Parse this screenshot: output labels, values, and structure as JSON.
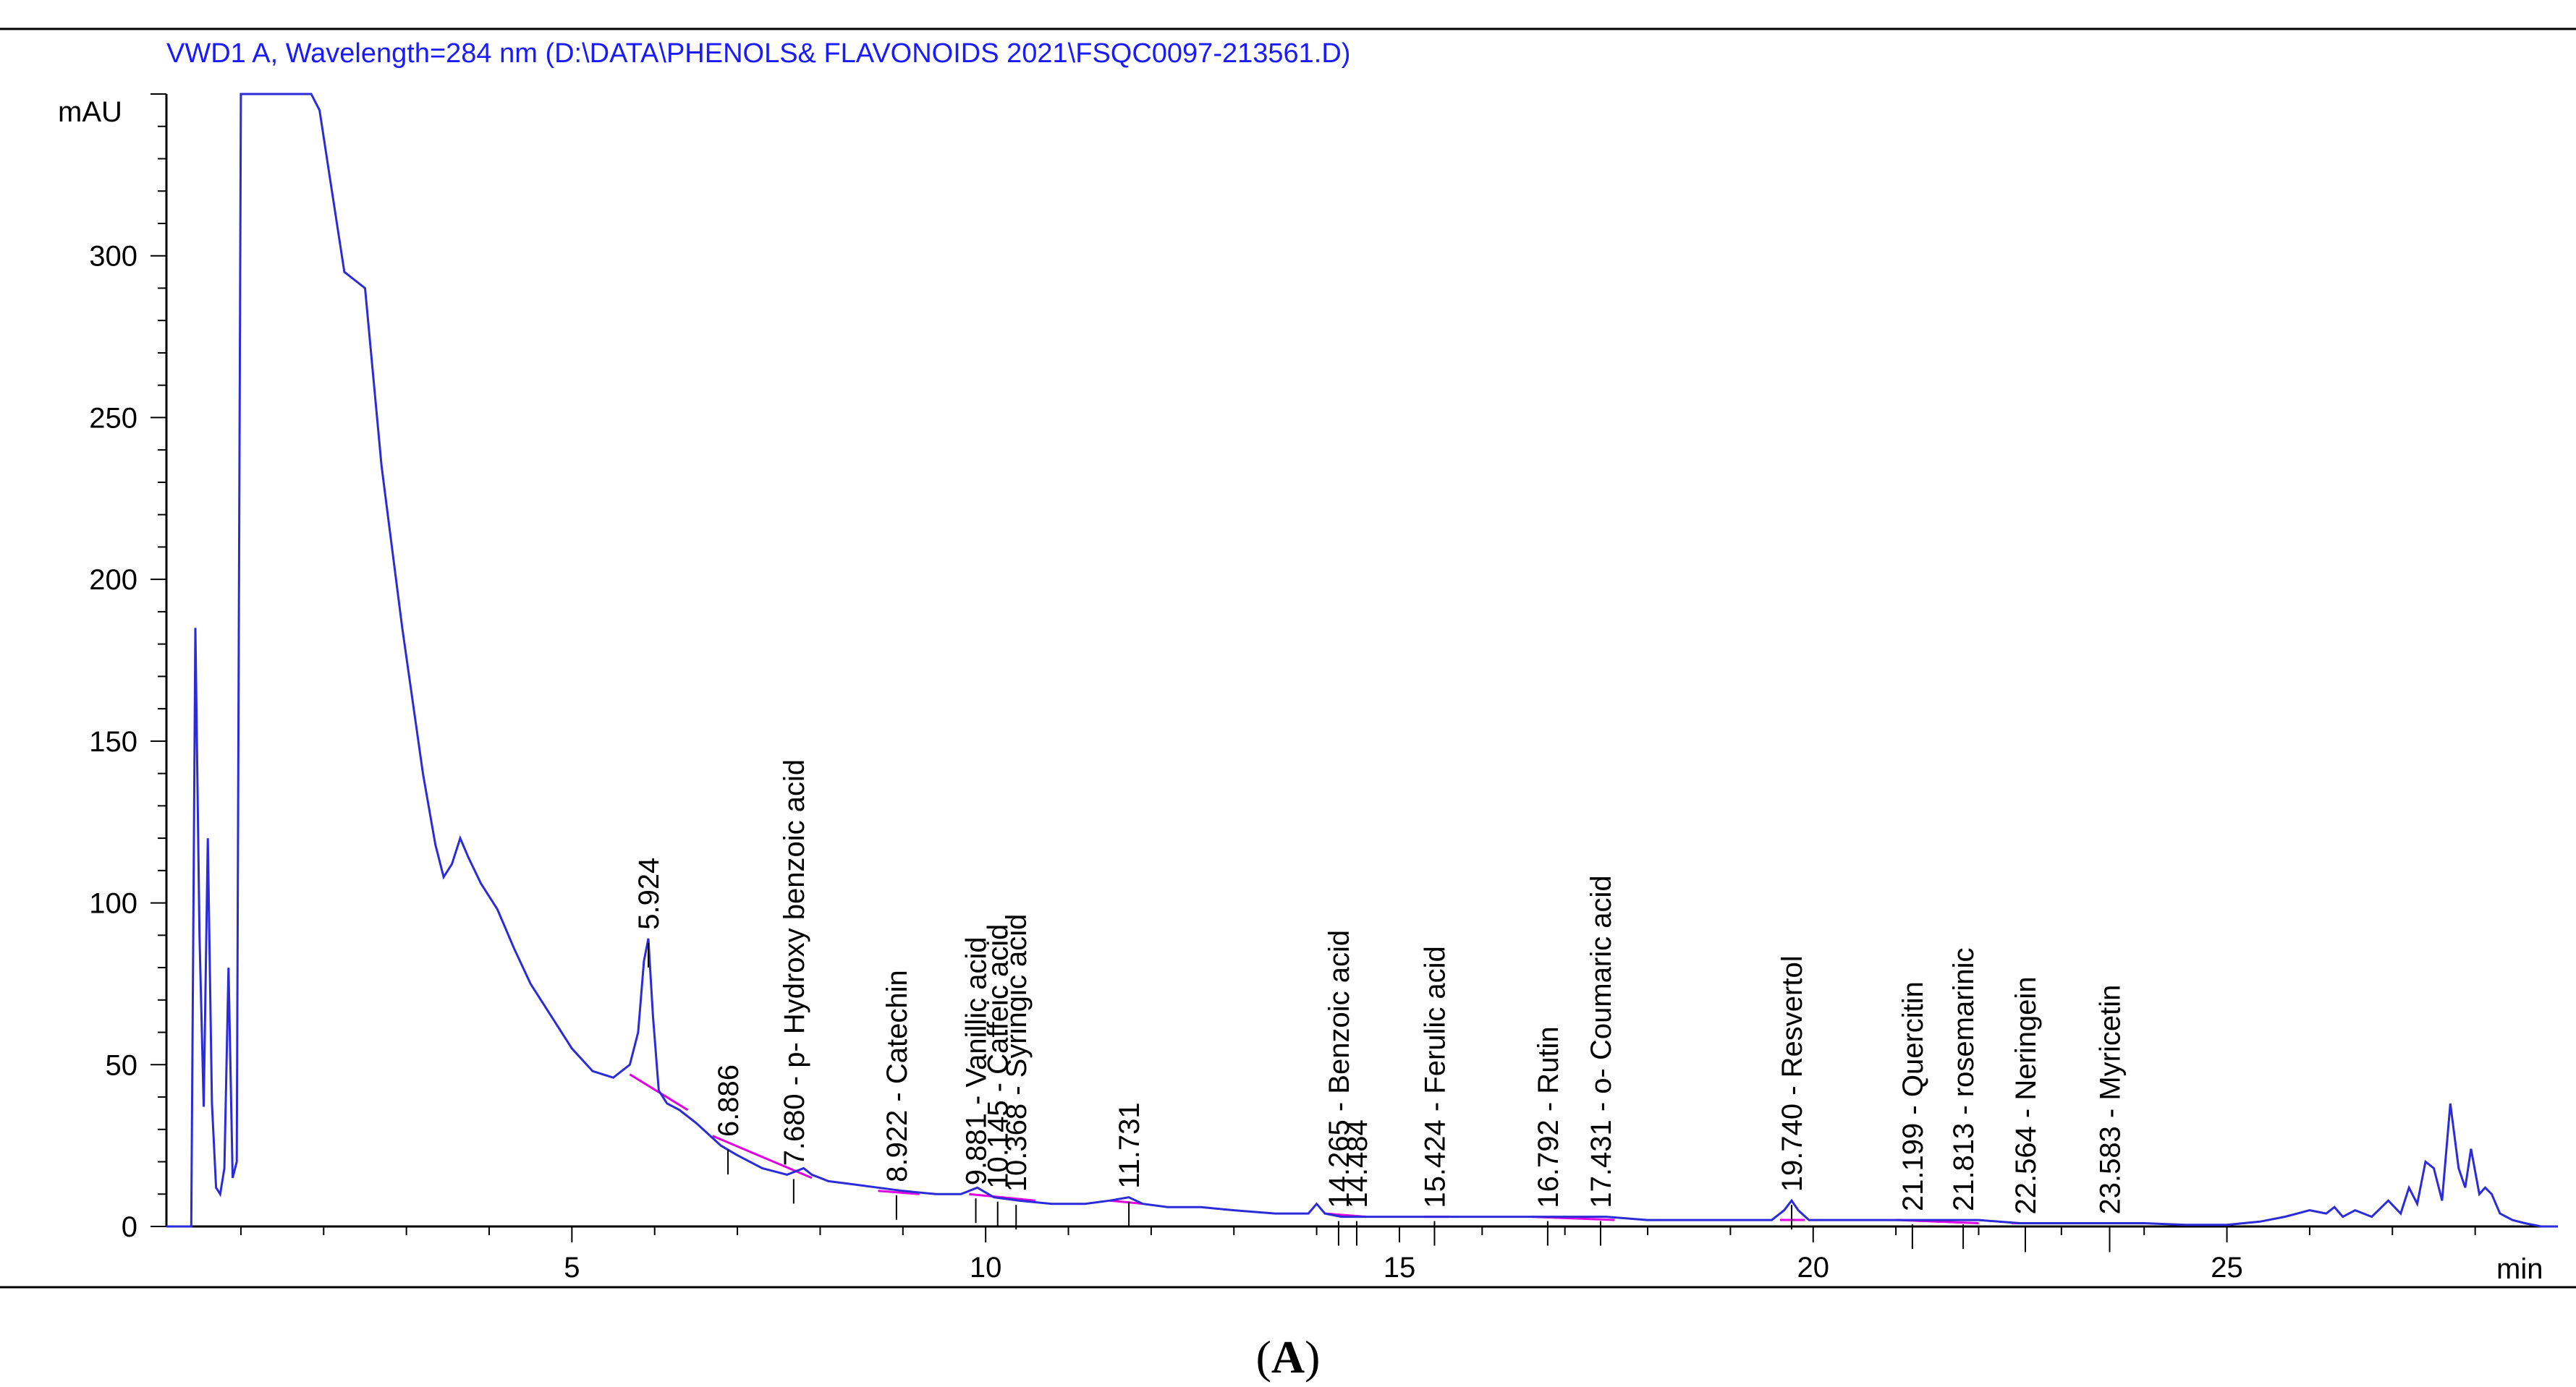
{
  "chart_data": {
    "type": "line",
    "title": "VWD1 A, Wavelength=284 nm (D:\\DATA\\PHENOLS& FLAVONOIDS 2021\\FSQC0097-213561.D)",
    "ylabel": "mAU",
    "xlabel": "min",
    "panel_label": "A",
    "xlim": [
      0.1,
      29.0
    ],
    "ylim": [
      0,
      350
    ],
    "x_ticks": [
      "5",
      "10",
      "15",
      "20",
      "25"
    ],
    "y_ticks": [
      "0",
      "50",
      "100",
      "150",
      "200",
      "250",
      "300"
    ],
    "colors": {
      "signal": "#2b2bd9",
      "baseline": "#e000e0",
      "header": "#1a1aff",
      "axis": "#000000"
    },
    "series": [
      {
        "x": [
          0.1,
          0.25,
          0.35,
          0.4,
          0.45,
          0.5,
          0.55,
          0.6,
          0.65,
          0.7,
          0.75,
          0.8,
          0.85,
          0.9,
          0.95,
          1.0,
          1.05,
          1.1,
          1.15,
          1.2,
          1.25,
          1.3,
          1.35,
          1.4,
          1.5,
          1.6,
          1.7,
          1.85,
          1.95,
          2.1,
          2.25,
          2.5,
          2.7,
          2.95,
          3.2,
          3.35,
          3.45,
          3.55,
          3.65,
          3.75,
          3.9,
          4.1,
          4.3,
          4.5,
          4.75,
          5.0,
          5.25,
          5.5,
          5.7,
          5.8,
          5.87,
          5.924,
          5.98,
          6.05,
          6.15,
          6.3,
          6.5,
          6.8,
          7.0,
          7.3,
          7.6,
          7.8,
          7.9,
          8.1,
          8.4,
          8.7,
          9.0,
          9.4,
          9.7,
          9.9,
          10.1,
          10.4,
          10.8,
          11.2,
          11.5,
          11.73,
          11.9,
          12.2,
          12.6,
          13.0,
          13.5,
          13.9,
          14.0,
          14.1,
          14.3,
          14.5,
          15.0,
          15.5,
          16.0,
          16.5,
          17.0,
          17.5,
          18.0,
          18.5,
          19.0,
          19.5,
          19.65,
          19.74,
          19.82,
          19.95,
          20.5,
          21.0,
          21.5,
          22.0,
          22.5,
          23.0,
          23.5,
          24.0,
          24.5,
          25.0,
          25.4,
          25.7,
          26.0,
          26.2,
          26.3,
          26.4,
          26.55,
          26.65,
          26.75,
          26.95,
          27.1,
          27.2,
          27.3,
          27.4,
          27.5,
          27.6,
          27.7,
          27.8,
          27.88,
          27.95,
          28.05,
          28.12,
          28.2,
          28.3,
          28.45,
          28.6,
          28.8,
          29.0
        ],
        "values": [
          0,
          0,
          0,
          0,
          185,
          90,
          37,
          120,
          38,
          12,
          10,
          18,
          80,
          15,
          20,
          350,
          350,
          350,
          350,
          350,
          350,
          350,
          350,
          350,
          350,
          350,
          350,
          350,
          345,
          320,
          295,
          290,
          235,
          185,
          140,
          118,
          108,
          112,
          120,
          114,
          106,
          98,
          86,
          75,
          65,
          55,
          48,
          46,
          50,
          60,
          82,
          89,
          65,
          42,
          38,
          36,
          32,
          25,
          22,
          18,
          16,
          18,
          16,
          14,
          13,
          12,
          11,
          10,
          10,
          12,
          9,
          8,
          7,
          7,
          8,
          9,
          7,
          6,
          6,
          5,
          4,
          4,
          7,
          4,
          3,
          3,
          3,
          3,
          3,
          3,
          3,
          3,
          2,
          2,
          2,
          2,
          5,
          8,
          5,
          2,
          2,
          2,
          2,
          2,
          1,
          1,
          1,
          1,
          0.5,
          0.5,
          1.5,
          3,
          5,
          4,
          6,
          3,
          5,
          4,
          3,
          8,
          4,
          12,
          7,
          20,
          18,
          8,
          38,
          18,
          12,
          24,
          10,
          12,
          10,
          4,
          2,
          1,
          0,
          0
        ]
      }
    ],
    "peaks": [
      {
        "rt": 5.924,
        "label": "5.924",
        "height": 89
      },
      {
        "rt": 6.886,
        "label": "6.886",
        "height": 25
      },
      {
        "rt": 7.68,
        "label": "7.680 -  p- Hydroxy benzoic acid",
        "height": 16
      },
      {
        "rt": 8.922,
        "label": "8.922 -  Catechin",
        "height": 11
      },
      {
        "rt": 9.881,
        "label": "9.881 -  Vanillic acid",
        "height": 10
      },
      {
        "rt": 10.145,
        "label": "10.145 -  Caffeic acid",
        "height": 9
      },
      {
        "rt": 10.368,
        "label": "10.368 -  Syringic acid",
        "height": 8
      },
      {
        "rt": 11.731,
        "label": "11.731",
        "height": 9
      },
      {
        "rt": 14.265,
        "label": "14.265 -  Benzoic acid",
        "height": 3
      },
      {
        "rt": 14.484,
        "label": "14.484",
        "height": 3
      },
      {
        "rt": 15.424,
        "label": "15.424 -  Ferulic acid",
        "height": 3
      },
      {
        "rt": 16.792,
        "label": "16.792 -  Rutin",
        "height": 3
      },
      {
        "rt": 17.431,
        "label": "17.431 -  o- Coumaric acid",
        "height": 3
      },
      {
        "rt": 19.74,
        "label": "19.740 -  Resvertol",
        "height": 8
      },
      {
        "rt": 21.199,
        "label": "21.199 -  Quercitin",
        "height": 2
      },
      {
        "rt": 21.813,
        "label": "21.813 -  rosemarinic",
        "height": 2
      },
      {
        "rt": 22.564,
        "label": "22.564 -  Neringein",
        "height": 1
      },
      {
        "rt": 23.583,
        "label": "23.583 -  Myricetin",
        "height": 1
      }
    ]
  }
}
